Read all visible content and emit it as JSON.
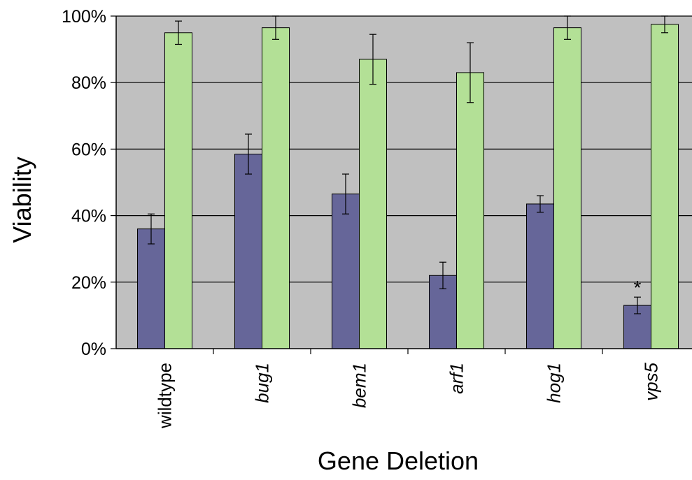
{
  "chart_data": {
    "type": "bar",
    "title": "",
    "xlabel": "Gene Deletion",
    "ylabel": "Viability",
    "ylim": [
      0,
      100
    ],
    "yticks": [
      "0%",
      "20%",
      "40%",
      "60%",
      "80%",
      "100%"
    ],
    "ytick_values": [
      0,
      20,
      40,
      60,
      80,
      100
    ],
    "grid": true,
    "legend": "none",
    "categories": [
      "wildtype",
      "bug1",
      "bem1",
      "arf1",
      "hog1",
      "vps5"
    ],
    "category_italic": [
      false,
      true,
      true,
      true,
      true,
      true
    ],
    "series": [
      {
        "color": "#666699",
        "values": [
          36,
          58.5,
          46.5,
          22,
          43.5,
          13
        ],
        "errors": [
          4.5,
          6,
          6,
          4,
          2.5,
          2.5
        ]
      },
      {
        "color": "#b3e096",
        "values": [
          95,
          96.5,
          87,
          83,
          96.5,
          97.5
        ],
        "errors": [
          3.5,
          3.5,
          7.5,
          9,
          3.5,
          2.5
        ]
      }
    ],
    "annotations": [
      {
        "text": "*",
        "category": "vps5",
        "series": 0
      }
    ]
  }
}
